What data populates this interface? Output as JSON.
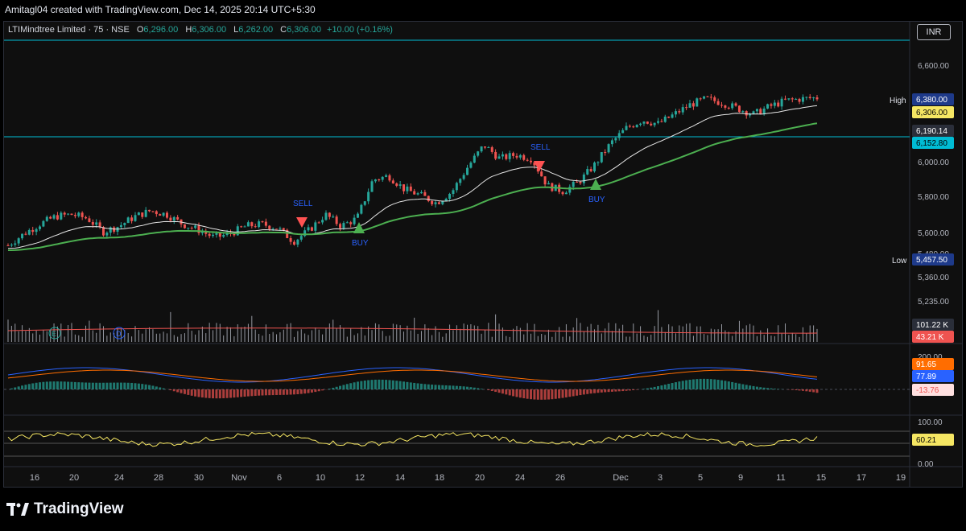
{
  "header": {
    "credit": "Amitagl04 created with TradingView.com, Dec 14, 2025 20:14 UTC+5:30"
  },
  "legend": {
    "symbol": "LTIMindtree Limited · 75 · NSE",
    "o_label": "O",
    "o_value": "6,296.00",
    "h_label": "H",
    "h_value": "6,306.00",
    "l_label": "L",
    "l_value": "6,262.00",
    "c_label": "C",
    "c_value": "6,306.00",
    "change": "+10.00 (+0.16%)"
  },
  "currency": "INR",
  "footer": {
    "brand": "TradingView"
  },
  "colors": {
    "up": "#26a69a",
    "down": "#ef5350",
    "ema_fast": "#ffffff",
    "ema_slow": "#4caf50",
    "macd": "#2962ff",
    "signal": "#ff6d00",
    "rsi": "#f5e663",
    "level": "#00bcd4"
  },
  "chart_data": {
    "type": "candlestick",
    "price_axis_ticks": [
      "6,600.00",
      "6,400.00",
      "6,000.00",
      "5,800.00",
      "5,600.00",
      "5,480.00",
      "5,360.00",
      "5,235.00"
    ],
    "price_range": [
      5235,
      6700
    ],
    "high_label": "High",
    "high_value": "6,380.00",
    "close_value": "6,306.00",
    "ema_fast_value": "6,190.14",
    "level_value": "6,152.80",
    "low_label": "Low",
    "low_value": "5,457.50",
    "x_ticks": [
      "16",
      "20",
      "24",
      "28",
      "30",
      "Nov",
      "6",
      "10",
      "12",
      "14",
      "18",
      "20",
      "24",
      "26",
      "Dec",
      "3",
      "5",
      "9",
      "11",
      "15",
      "17",
      "19"
    ],
    "signals": [
      {
        "label": "SELL",
        "type": "sell"
      },
      {
        "label": "BUY",
        "type": "buy"
      },
      {
        "label": "SELL",
        "type": "sell"
      },
      {
        "label": "BUY",
        "type": "buy"
      }
    ],
    "event_markers": [
      "E",
      "D"
    ],
    "volume": {
      "values": [
        "101.22 K",
        "43.21 K"
      ]
    },
    "macd": {
      "axis": "200.00",
      "values": [
        "91.65",
        "77.89",
        "-13.76"
      ]
    },
    "rsi": {
      "axis_top": "100.00",
      "axis_bottom": "0.00",
      "value": "60.21"
    },
    "close_path": [
      5540,
      5600,
      5650,
      5690,
      5700,
      5680,
      5610,
      5640,
      5690,
      5720,
      5700,
      5650,
      5620,
      5580,
      5600,
      5640,
      5650,
      5630,
      5560,
      5620,
      5700,
      5640,
      5680,
      5880,
      5900,
      5830,
      5800,
      5760,
      5820,
      5950,
      6060,
      5990,
      6010,
      5990,
      5850,
      5820,
      5870,
      5960,
      6070,
      6150,
      6190,
      6170,
      6220,
      6270,
      6300,
      6280,
      6250,
      6220,
      6260,
      6290,
      6300,
      6306
    ]
  }
}
